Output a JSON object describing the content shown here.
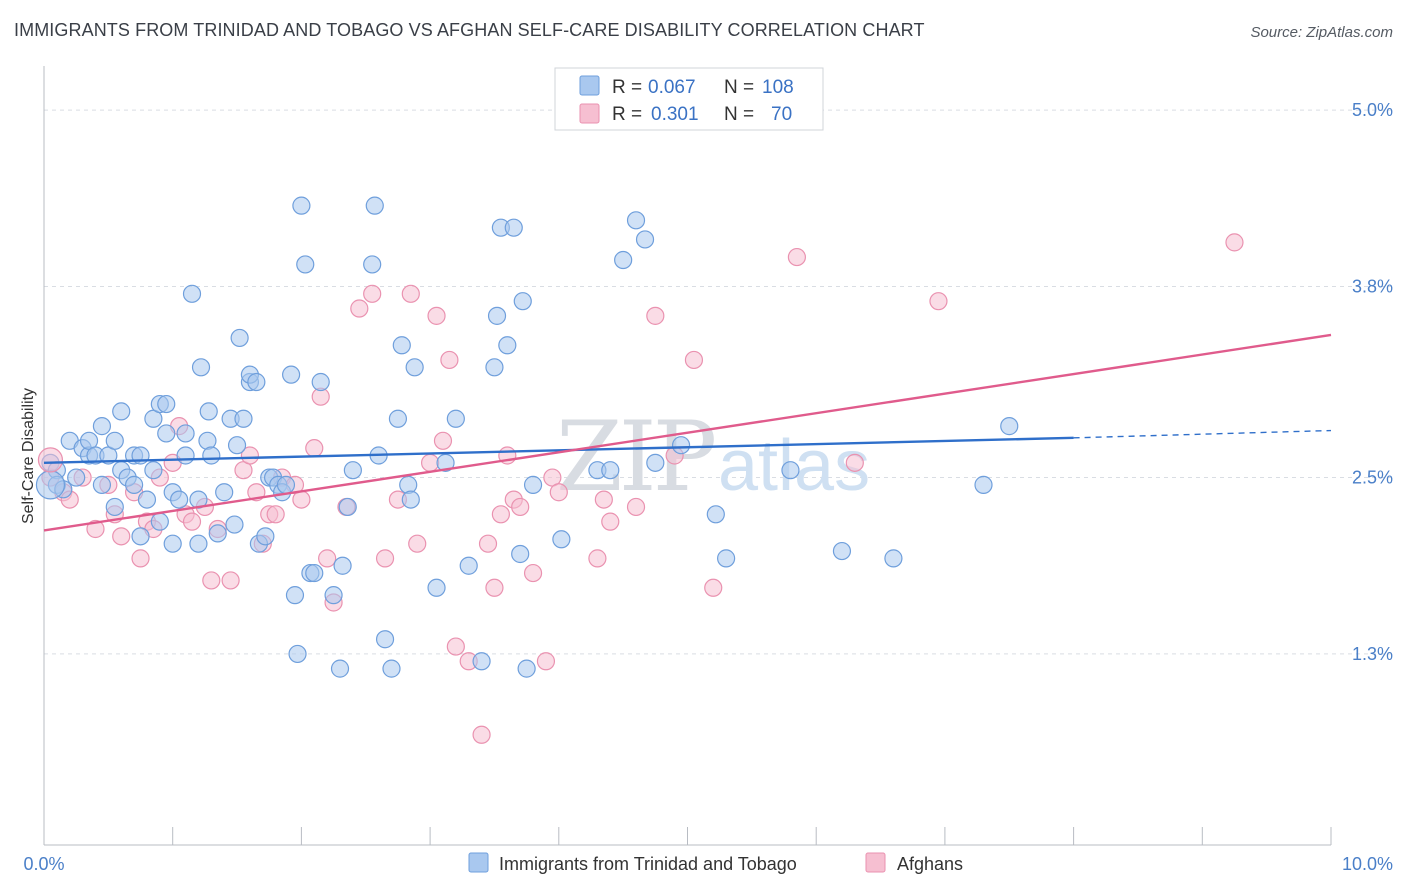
{
  "title": "IMMIGRANTS FROM TRINIDAD AND TOBAGO VS AFGHAN SELF-CARE DISABILITY CORRELATION CHART",
  "source": "Source: ZipAtlas.com",
  "watermark": {
    "part1": "ZIP",
    "part2": "atlas"
  },
  "legend": {
    "r_label": "R =",
    "n_label": "N =",
    "rows": [
      {
        "r": "0.067",
        "n": "108"
      },
      {
        "r": "0.301",
        "n": "70"
      }
    ]
  },
  "colors": {
    "blue_fill": "#a9c8ef",
    "blue_stroke": "#6f9fdc",
    "blue_line": "#2f6fca",
    "pink_fill": "#f6bfd1",
    "pink_stroke": "#ea92b0",
    "pink_line": "#e05b8c",
    "grid": "#d9dde3",
    "tick_label": "#4a7fc8"
  },
  "chart_data": {
    "type": "scatter",
    "title": "IMMIGRANTS FROM TRINIDAD AND TOBAGO VS AFGHAN SELF-CARE DISABILITY CORRELATION CHART",
    "xlabel": "",
    "ylabel": "Self-Care Disability",
    "xlim": [
      0,
      10
    ],
    "ylim": [
      0,
      5.3
    ],
    "x_tick_labels": [
      "0.0%",
      "10.0%"
    ],
    "y_ticks": [
      {
        "value": 5.0,
        "label": "5.0%"
      },
      {
        "value": 3.8,
        "label": "3.8%"
      },
      {
        "value": 2.5,
        "label": "2.5%"
      },
      {
        "value": 1.3,
        "label": "1.3%"
      }
    ],
    "grid": true,
    "legend_position": "top-center",
    "series": [
      {
        "name": "Immigrants from Trinidad and Tobago",
        "color": "blue",
        "trend": {
          "x0": 0,
          "y0": 2.6,
          "x1": 8.0,
          "y1": 2.77,
          "dash_x1": 10.0,
          "dash_y1": 2.82
        },
        "points": [
          [
            0.05,
            2.6
          ],
          [
            0.1,
            2.55
          ],
          [
            0.1,
            2.45
          ],
          [
            0.15,
            2.42
          ],
          [
            0.2,
            2.75
          ],
          [
            0.25,
            2.5
          ],
          [
            0.3,
            2.7
          ],
          [
            0.35,
            2.65
          ],
          [
            0.35,
            2.75
          ],
          [
            0.4,
            2.65
          ],
          [
            0.45,
            2.45
          ],
          [
            0.5,
            2.65
          ],
          [
            0.55,
            2.75
          ],
          [
            0.55,
            2.3
          ],
          [
            0.6,
            2.95
          ],
          [
            0.6,
            2.55
          ],
          [
            0.65,
            2.5
          ],
          [
            0.7,
            2.65
          ],
          [
            0.45,
            2.85
          ],
          [
            0.7,
            2.45
          ],
          [
            0.75,
            2.1
          ],
          [
            0.75,
            2.65
          ],
          [
            0.8,
            2.35
          ],
          [
            0.85,
            2.9
          ],
          [
            0.85,
            2.55
          ],
          [
            0.9,
            3.0
          ],
          [
            0.9,
            2.2
          ],
          [
            0.95,
            3.0
          ],
          [
            0.95,
            2.8
          ],
          [
            1.0,
            2.4
          ],
          [
            1.0,
            2.05
          ],
          [
            1.05,
            2.35
          ],
          [
            1.1,
            2.65
          ],
          [
            1.1,
            2.8
          ],
          [
            1.15,
            3.75
          ],
          [
            1.2,
            2.35
          ],
          [
            1.2,
            2.05
          ],
          [
            1.22,
            3.25
          ],
          [
            1.27,
            2.75
          ],
          [
            1.28,
            2.95
          ],
          [
            1.3,
            2.65
          ],
          [
            1.35,
            2.12
          ],
          [
            1.4,
            2.4
          ],
          [
            1.45,
            2.9
          ],
          [
            1.48,
            2.18
          ],
          [
            1.5,
            2.72
          ],
          [
            1.52,
            3.45
          ],
          [
            1.55,
            2.9
          ],
          [
            1.6,
            3.15
          ],
          [
            1.6,
            3.2
          ],
          [
            1.65,
            3.15
          ],
          [
            1.67,
            2.05
          ],
          [
            1.72,
            2.1
          ],
          [
            1.75,
            2.5
          ],
          [
            1.78,
            2.5
          ],
          [
            1.82,
            2.45
          ],
          [
            1.85,
            2.4
          ],
          [
            1.88,
            2.45
          ],
          [
            1.92,
            3.2
          ],
          [
            1.95,
            1.7
          ],
          [
            1.97,
            1.3
          ],
          [
            2.0,
            4.35
          ],
          [
            2.03,
            3.95
          ],
          [
            2.07,
            1.85
          ],
          [
            2.1,
            1.85
          ],
          [
            2.15,
            3.15
          ],
          [
            2.25,
            1.7
          ],
          [
            2.3,
            1.2
          ],
          [
            2.32,
            1.9
          ],
          [
            2.36,
            2.3
          ],
          [
            2.4,
            2.55
          ],
          [
            2.55,
            3.95
          ],
          [
            2.57,
            4.35
          ],
          [
            2.6,
            2.65
          ],
          [
            2.65,
            1.4
          ],
          [
            2.7,
            1.2
          ],
          [
            2.75,
            2.9
          ],
          [
            2.78,
            3.4
          ],
          [
            2.83,
            2.45
          ],
          [
            2.85,
            2.35
          ],
          [
            2.88,
            3.25
          ],
          [
            3.05,
            1.75
          ],
          [
            3.12,
            2.6
          ],
          [
            3.2,
            2.9
          ],
          [
            3.3,
            1.9
          ],
          [
            3.4,
            1.25
          ],
          [
            3.5,
            3.25
          ],
          [
            3.52,
            3.6
          ],
          [
            3.55,
            4.2
          ],
          [
            3.6,
            3.4
          ],
          [
            3.65,
            4.2
          ],
          [
            3.7,
            1.98
          ],
          [
            3.72,
            3.7
          ],
          [
            3.8,
            2.45
          ],
          [
            3.75,
            1.2
          ],
          [
            4.02,
            2.08
          ],
          [
            4.3,
            2.55
          ],
          [
            4.4,
            2.55
          ],
          [
            4.5,
            3.98
          ],
          [
            4.6,
            4.25
          ],
          [
            4.67,
            4.12
          ],
          [
            4.75,
            2.6
          ],
          [
            4.95,
            2.72
          ],
          [
            5.22,
            2.25
          ],
          [
            5.3,
            1.95
          ],
          [
            5.8,
            2.55
          ],
          [
            6.2,
            2.0
          ],
          [
            6.6,
            1.95
          ],
          [
            7.3,
            2.45
          ],
          [
            7.5,
            2.85
          ]
        ]
      },
      {
        "name": "Afghans",
        "color": "pink",
        "trend": {
          "x0": 0,
          "y0": 2.14,
          "x1": 10.0,
          "y1": 3.47
        },
        "points": [
          [
            0.05,
            2.5
          ],
          [
            0.15,
            2.4
          ],
          [
            0.2,
            2.35
          ],
          [
            0.3,
            2.5
          ],
          [
            0.4,
            2.15
          ],
          [
            0.5,
            2.45
          ],
          [
            0.55,
            2.25
          ],
          [
            0.6,
            2.1
          ],
          [
            0.7,
            2.4
          ],
          [
            0.75,
            1.95
          ],
          [
            0.8,
            2.2
          ],
          [
            0.85,
            2.15
          ],
          [
            0.9,
            2.5
          ],
          [
            1.0,
            2.6
          ],
          [
            1.05,
            2.85
          ],
          [
            1.1,
            2.25
          ],
          [
            1.15,
            2.2
          ],
          [
            1.25,
            2.3
          ],
          [
            1.3,
            1.8
          ],
          [
            1.35,
            2.15
          ],
          [
            1.45,
            1.8
          ],
          [
            1.55,
            2.55
          ],
          [
            1.6,
            2.65
          ],
          [
            1.65,
            2.4
          ],
          [
            1.7,
            2.05
          ],
          [
            1.75,
            2.25
          ],
          [
            1.8,
            2.25
          ],
          [
            1.85,
            2.5
          ],
          [
            1.95,
            2.45
          ],
          [
            2.0,
            2.35
          ],
          [
            2.1,
            2.7
          ],
          [
            2.15,
            3.05
          ],
          [
            2.2,
            1.95
          ],
          [
            2.25,
            1.65
          ],
          [
            2.35,
            2.3
          ],
          [
            2.45,
            3.65
          ],
          [
            2.55,
            3.75
          ],
          [
            2.65,
            1.95
          ],
          [
            2.75,
            2.35
          ],
          [
            2.85,
            3.75
          ],
          [
            2.9,
            2.05
          ],
          [
            3.0,
            2.6
          ],
          [
            3.05,
            3.6
          ],
          [
            3.1,
            2.75
          ],
          [
            3.15,
            3.3
          ],
          [
            3.2,
            1.35
          ],
          [
            3.3,
            1.25
          ],
          [
            3.4,
            0.75
          ],
          [
            3.45,
            2.05
          ],
          [
            3.5,
            1.75
          ],
          [
            3.55,
            2.25
          ],
          [
            3.6,
            2.65
          ],
          [
            3.65,
            2.35
          ],
          [
            3.7,
            2.3
          ],
          [
            3.8,
            1.85
          ],
          [
            3.9,
            1.25
          ],
          [
            3.95,
            2.5
          ],
          [
            4.0,
            2.4
          ],
          [
            4.3,
            1.95
          ],
          [
            4.35,
            2.35
          ],
          [
            4.4,
            2.2
          ],
          [
            4.6,
            2.3
          ],
          [
            4.75,
            3.6
          ],
          [
            4.9,
            2.65
          ],
          [
            5.05,
            3.3
          ],
          [
            5.2,
            1.75
          ],
          [
            5.85,
            4.0
          ],
          [
            6.3,
            2.6
          ],
          [
            6.95,
            3.7
          ],
          [
            9.25,
            4.1
          ]
        ]
      }
    ]
  },
  "bottom_legend": [
    {
      "label": "Immigrants from Trinidad and Tobago"
    },
    {
      "label": "Afghans"
    }
  ]
}
